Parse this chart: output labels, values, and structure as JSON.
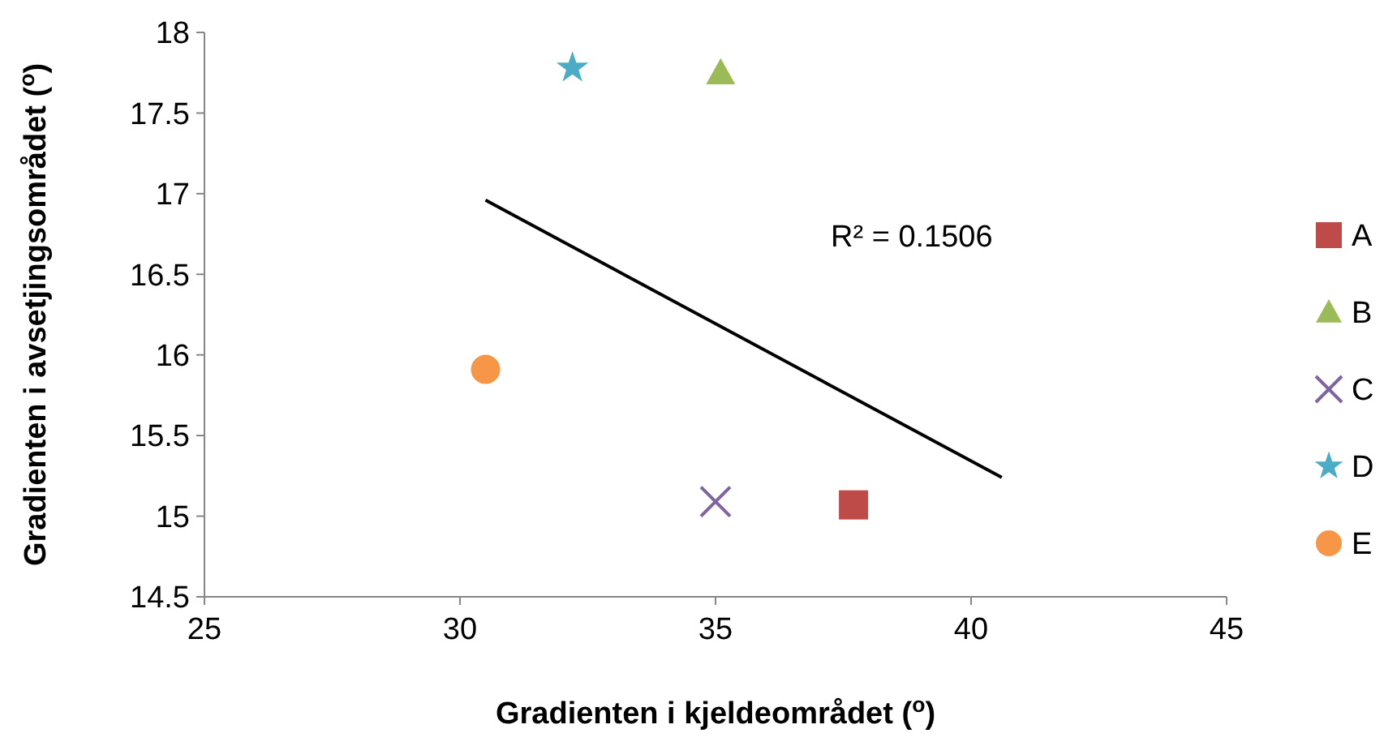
{
  "chart_data": {
    "type": "scatter",
    "xlabel": "Gradienten i kjeldeområdet ($^{o}$)",
    "ylabel": "Gradienten i avsetjingsområdet ($^{o}$)",
    "xlim": [
      25,
      45
    ],
    "xticks": [
      25,
      30,
      35,
      40,
      45
    ],
    "ylim": [
      14.5,
      18
    ],
    "yticks": [
      14.5,
      15,
      15.5,
      16,
      16.5,
      17,
      17.5,
      18
    ],
    "legend": "right",
    "grid": false,
    "annotations": [
      "R² = 0.1506"
    ],
    "series": [
      {
        "name": "A",
        "color": "#be4b48",
        "marker": "square",
        "x": [
          37.7
        ],
        "values": [
          15.07
        ]
      },
      {
        "name": "B",
        "color": "#9bbb59",
        "marker": "triangle",
        "x": [
          35.1
        ],
        "values": [
          17.75
        ]
      },
      {
        "name": "C",
        "color": "#8064a2",
        "marker": "cross",
        "x": [
          35.0
        ],
        "values": [
          15.09
        ]
      },
      {
        "name": "D",
        "color": "#4bacc6",
        "marker": "star",
        "x": [
          32.2
        ],
        "values": [
          17.78
        ]
      },
      {
        "name": "E",
        "color": "#f79646",
        "marker": "circle",
        "x": [
          30.5
        ],
        "values": [
          15.91
        ]
      },
      {
        "type": "line",
        "color": "#000000",
        "marker": "none",
        "x": [
          30.5,
          40.6
        ],
        "values": [
          16.96,
          15.24
        ]
      }
    ]
  }
}
